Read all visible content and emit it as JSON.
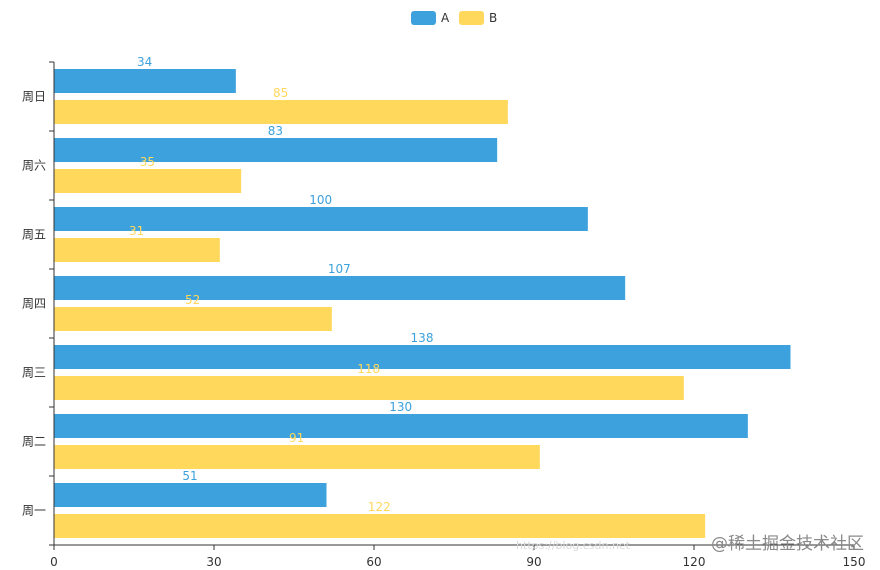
{
  "chart_data": {
    "type": "bar",
    "orientation": "horizontal",
    "categories": [
      "周一",
      "周二",
      "周三",
      "周四",
      "周五",
      "周六",
      "周日"
    ],
    "series": [
      {
        "name": "A",
        "values": [
          51,
          130,
          138,
          107,
          100,
          83,
          34
        ],
        "color": "#3ca1dc"
      },
      {
        "name": "B",
        "values": [
          122,
          91,
          118,
          52,
          31,
          35,
          85
        ],
        "color": "#ffd85c"
      }
    ],
    "xlim": [
      0,
      150
    ],
    "xticks": [
      0,
      30,
      60,
      90,
      120,
      150
    ],
    "legend_position": "top-center",
    "grid": false
  },
  "watermark": {
    "main": "@稀土掘金技术社区",
    "faint": "https://blog.csdn.net"
  }
}
